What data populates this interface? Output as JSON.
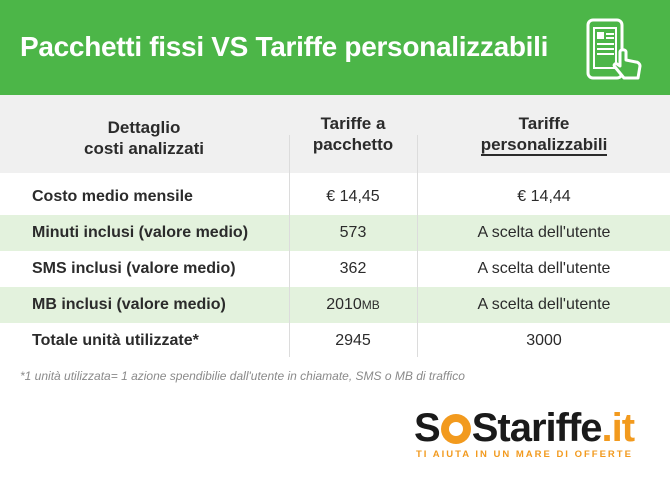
{
  "banner": {
    "title": "Pacchetti fissi VS Tariffe personalizzabili",
    "icon": "smartphone-touch-icon",
    "color": "#4cb648"
  },
  "table": {
    "headers": {
      "col1_line1": "Dettaglio",
      "col1_line2": "costi analizzati",
      "col2_line1": "Tariffe a",
      "col2_line2": "pacchetto",
      "col3_line1": "Tariffe",
      "col3_line2": "personalizzabili"
    },
    "rows": [
      {
        "label": "Costo medio mensile",
        "pacchetto": "€ 14,45",
        "personalizzabili": "€ 14,44"
      },
      {
        "label": "Minuti inclusi (valore medio)",
        "pacchetto": "573",
        "personalizzabili": "A scelta dell'utente"
      },
      {
        "label": "SMS inclusi (valore medio)",
        "pacchetto": "362",
        "personalizzabili": "A scelta dell'utente"
      },
      {
        "label": "MB inclusi (valore medio)",
        "pacchetto": "2010",
        "pacchetto_unit": "MB",
        "personalizzabili": "A scelta dell'utente"
      },
      {
        "label": "Totale unità utilizzate*",
        "pacchetto": "2945",
        "personalizzabili": "3000"
      }
    ],
    "alt_row_color": "#e3f2dd"
  },
  "footnote": "*1 unità utilizzata= 1 azione spendibilie dall'utente in chiamate, SMS o MB di traffico",
  "logo": {
    "s1": "S",
    "s2": "S",
    "tariffe": "tariffe",
    "it": ".it",
    "tagline": "TI AIUTA IN UN MARE DI OFFERTE",
    "accent": "#f29a1e"
  }
}
